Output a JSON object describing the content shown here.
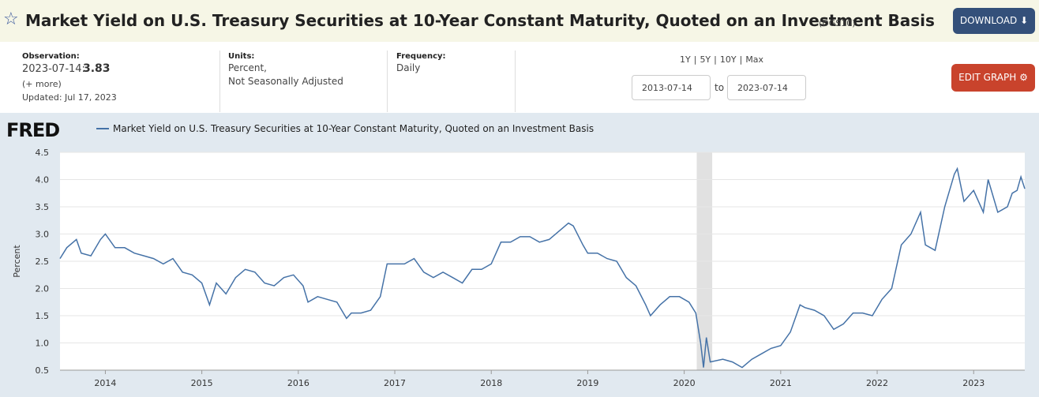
{
  "header": {
    "title": "Market Yield on U.S. Treasury Securities at 10-Year Constant Maturity, Quoted on an Investment Basis",
    "series_id": "(DGS10)",
    "download": "DOWNLOAD"
  },
  "info": {
    "observation_label": "Observation:",
    "observation_date": "2023-07-14:",
    "observation_value": "3.83",
    "more": "(+ more)",
    "updated": "Updated: Jul 17, 2023",
    "units_label": "Units:",
    "units_line1": "Percent,",
    "units_line2": "Not Seasonally Adjusted",
    "frequency_label": "Frequency:",
    "frequency": "Daily",
    "ranges": [
      "1Y",
      "5Y",
      "10Y",
      "Max"
    ],
    "start_date": "2013-07-14",
    "to": "to",
    "end_date": "2023-07-14",
    "edit_graph": "EDIT GRAPH"
  },
  "logo": "FRED",
  "chart_data": {
    "type": "line",
    "ylabel": "Percent",
    "x": [
      2013.53,
      2013.6,
      2013.7,
      2013.75,
      2013.85,
      2013.95,
      2014.0,
      2014.1,
      2014.2,
      2014.3,
      2014.4,
      2014.5,
      2014.6,
      2014.7,
      2014.8,
      2014.9,
      2015.0,
      2015.08,
      2015.15,
      2015.25,
      2015.35,
      2015.45,
      2015.55,
      2015.65,
      2015.75,
      2015.85,
      2015.95,
      2016.05,
      2016.1,
      2016.2,
      2016.3,
      2016.4,
      2016.5,
      2016.55,
      2016.65,
      2016.75,
      2016.85,
      2016.92,
      2017.0,
      2017.1,
      2017.2,
      2017.3,
      2017.4,
      2017.5,
      2017.6,
      2017.7,
      2017.8,
      2017.9,
      2018.0,
      2018.1,
      2018.2,
      2018.3,
      2018.4,
      2018.5,
      2018.6,
      2018.7,
      2018.8,
      2018.85,
      2018.95,
      2019.0,
      2019.1,
      2019.2,
      2019.3,
      2019.4,
      2019.5,
      2019.6,
      2019.65,
      2019.75,
      2019.85,
      2019.95,
      2020.05,
      2020.12,
      2020.17,
      2020.2,
      2020.23,
      2020.27,
      2020.4,
      2020.5,
      2020.6,
      2020.7,
      2020.8,
      2020.9,
      2021.0,
      2021.1,
      2021.2,
      2021.25,
      2021.35,
      2021.45,
      2021.55,
      2021.65,
      2021.75,
      2021.85,
      2021.95,
      2022.05,
      2022.15,
      2022.25,
      2022.35,
      2022.45,
      2022.5,
      2022.6,
      2022.7,
      2022.8,
      2022.83,
      2022.9,
      2023.0,
      2023.1,
      2023.15,
      2023.25,
      2023.35,
      2023.4,
      2023.45,
      2023.49,
      2023.53
    ],
    "series": [
      {
        "name": "Market Yield on U.S. Treasury Securities at 10-Year Constant Maturity, Quoted on an Investment Basis",
        "color": "#4572a7",
        "values": [
          2.55,
          2.75,
          2.9,
          2.65,
          2.6,
          2.9,
          3.0,
          2.75,
          2.75,
          2.65,
          2.6,
          2.55,
          2.45,
          2.55,
          2.3,
          2.25,
          2.1,
          1.7,
          2.1,
          1.9,
          2.2,
          2.35,
          2.3,
          2.1,
          2.05,
          2.2,
          2.25,
          2.05,
          1.75,
          1.85,
          1.8,
          1.75,
          1.45,
          1.55,
          1.55,
          1.6,
          1.85,
          2.45,
          2.45,
          2.45,
          2.55,
          2.3,
          2.2,
          2.3,
          2.2,
          2.1,
          2.35,
          2.35,
          2.45,
          2.85,
          2.85,
          2.95,
          2.95,
          2.85,
          2.9,
          3.05,
          3.2,
          3.15,
          2.8,
          2.65,
          2.65,
          2.55,
          2.5,
          2.2,
          2.05,
          1.7,
          1.5,
          1.7,
          1.85,
          1.85,
          1.75,
          1.55,
          1.0,
          0.55,
          1.1,
          0.65,
          0.7,
          0.65,
          0.55,
          0.7,
          0.8,
          0.9,
          0.95,
          1.2,
          1.7,
          1.65,
          1.6,
          1.5,
          1.25,
          1.35,
          1.55,
          1.55,
          1.5,
          1.8,
          2.0,
          2.8,
          3.0,
          3.4,
          2.8,
          2.7,
          3.5,
          4.1,
          4.2,
          3.6,
          3.8,
          3.4,
          4.0,
          3.4,
          3.5,
          3.75,
          3.8,
          4.05,
          3.83
        ]
      }
    ],
    "xlim": [
      2013.53,
      2023.53
    ],
    "xticks": [
      2014,
      2015,
      2016,
      2017,
      2018,
      2019,
      2020,
      2021,
      2022,
      2023
    ],
    "ylim": [
      0.5,
      4.5
    ],
    "yticks": [
      0.5,
      {
        "value": 1,
        "label": "1.0"
      },
      1.5,
      {
        "value": 2,
        "label": "2.0"
      },
      2.5,
      {
        "value": 3,
        "label": "3.0"
      },
      3.5,
      {
        "value": 4,
        "label": "4.0"
      },
      4.5
    ],
    "grid": true,
    "recession": [
      2020.13,
      2020.29
    ],
    "recession_color": "#e1e1e1"
  }
}
